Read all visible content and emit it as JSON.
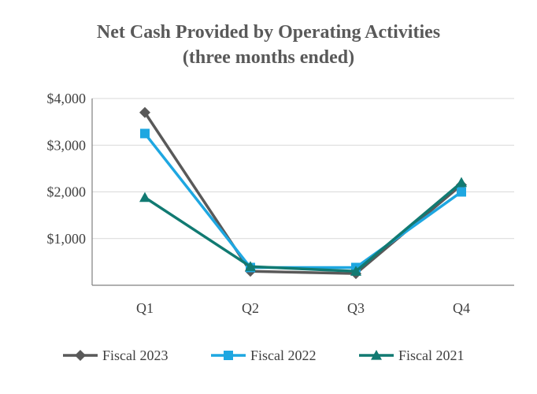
{
  "chart_data": {
    "type": "line",
    "title": "Net Cash Provided by Operating Activities",
    "subtitle": "(three months ended)",
    "categories": [
      "Q1",
      "Q2",
      "Q3",
      "Q4"
    ],
    "y_ticks": [
      "$1,000",
      "$2,000",
      "$3,000",
      "$4,000"
    ],
    "y_tick_values": [
      1000,
      2000,
      3000,
      4000
    ],
    "ylim": [
      0,
      4000
    ],
    "grid": true,
    "legend_position": "bottom",
    "series": [
      {
        "name": "Fiscal 2023",
        "values": [
          3700,
          300,
          250,
          2150
        ],
        "color": "#595959",
        "marker": "diamond"
      },
      {
        "name": "Fiscal 2022",
        "values": [
          3250,
          380,
          380,
          2000
        ],
        "color": "#1ea7e1",
        "marker": "square"
      },
      {
        "name": "Fiscal 2021",
        "values": [
          1880,
          400,
          300,
          2200
        ],
        "color": "#117a72",
        "marker": "triangle"
      }
    ]
  }
}
